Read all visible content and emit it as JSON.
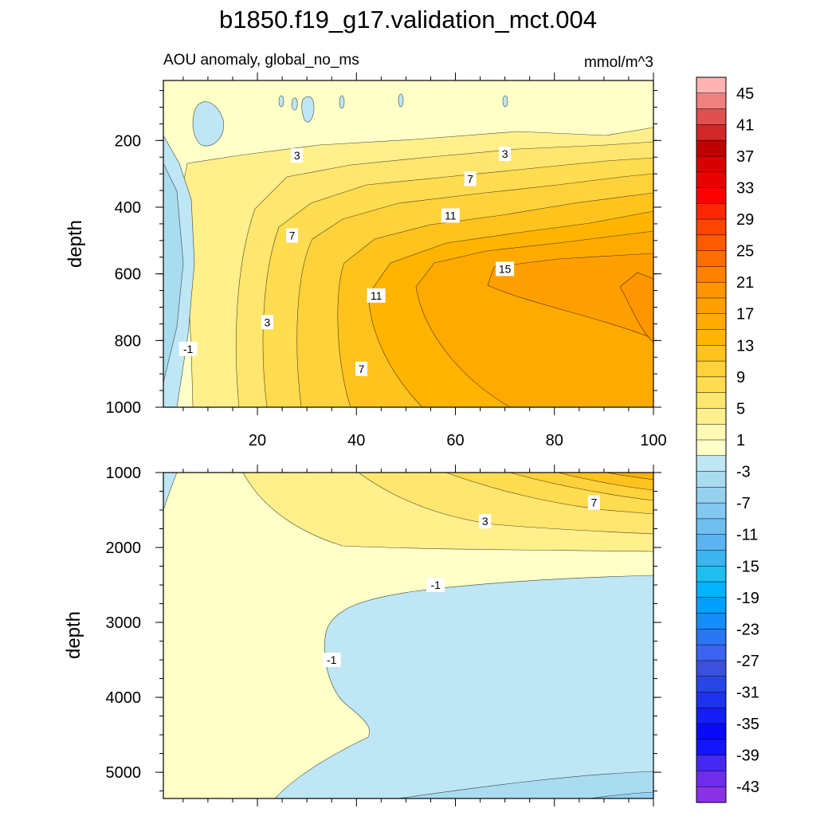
{
  "chart_data": {
    "type": "heatmap",
    "title": "b1850.f19_g17.validation_mct.004",
    "panels": [
      {
        "subtitle_left": "AOU anomaly, global_no_ms",
        "subtitle_right": "mmol/m^3",
        "ylabel": "depth",
        "xlim": [
          1,
          100
        ],
        "ylim": [
          1000,
          20
        ],
        "x_ticks": [
          20,
          40,
          60,
          80,
          100
        ],
        "y_ticks": [
          200,
          400,
          600,
          800,
          1000
        ],
        "contour_labels": [
          {
            "text": "3",
            "x": 28,
            "y": 245
          },
          {
            "text": "3",
            "x": 70,
            "y": 240
          },
          {
            "text": "7",
            "x": 63,
            "y": 315
          },
          {
            "text": "11",
            "x": 59,
            "y": 425
          },
          {
            "text": "7",
            "x": 27,
            "y": 485
          },
          {
            "text": "15",
            "x": 70,
            "y": 585
          },
          {
            "text": "11",
            "x": 44,
            "y": 665
          },
          {
            "text": "3",
            "x": 22,
            "y": 745
          },
          {
            "text": "-1",
            "x": 6,
            "y": 825
          },
          {
            "text": "7",
            "x": 41,
            "y": 885
          }
        ]
      },
      {
        "ylabel": "depth",
        "xlim": [
          1,
          100
        ],
        "ylim": [
          5350,
          1000
        ],
        "y_ticks": [
          1000,
          2000,
          3000,
          4000,
          5000
        ],
        "contour_labels": [
          {
            "text": "7",
            "x": 88,
            "y": 1400
          },
          {
            "text": "3",
            "x": 66,
            "y": 1650
          },
          {
            "text": "-1",
            "x": 56,
            "y": 2500
          },
          {
            "text": "-1",
            "x": 35,
            "y": 3500
          }
        ]
      }
    ],
    "colorbar": {
      "labels": [
        "45",
        "41",
        "37",
        "33",
        "29",
        "25",
        "21",
        "17",
        "13",
        "9",
        "5",
        "1",
        "-3",
        "-7",
        "-11",
        "-15",
        "-19",
        "-23",
        "-27",
        "-31",
        "-35",
        "-39",
        "-43"
      ],
      "colors": [
        "#FFB4B4",
        "#F08080",
        "#E05050",
        "#D02828",
        "#C00000",
        "#D80000",
        "#E80000",
        "#FF0000",
        "#FF2800",
        "#FF4600",
        "#FF5A00",
        "#FF6E00",
        "#FF8200",
        "#FF9600",
        "#FFA000",
        "#FFAA00",
        "#FFB400",
        "#FFC31E",
        "#FFD23C",
        "#FFDC50",
        "#FFE66E",
        "#FFF08C",
        "#FFFAB4",
        "#FFFFC8",
        "#BEE6F5",
        "#AADCF0",
        "#96D2F0",
        "#82C8F0",
        "#6EBEF0",
        "#5AB4F0",
        "#3CB4F0",
        "#1EBEF0",
        "#00B4FF",
        "#00A0FF",
        "#148CFA",
        "#2878F5",
        "#3C64F0",
        "#3C50DC",
        "#2846E6",
        "#1E32F0",
        "#141EF5",
        "#0A0AF8",
        "#1414FF",
        "#4628F0",
        "#6E2DEB",
        "#8C32E6"
      ]
    }
  }
}
